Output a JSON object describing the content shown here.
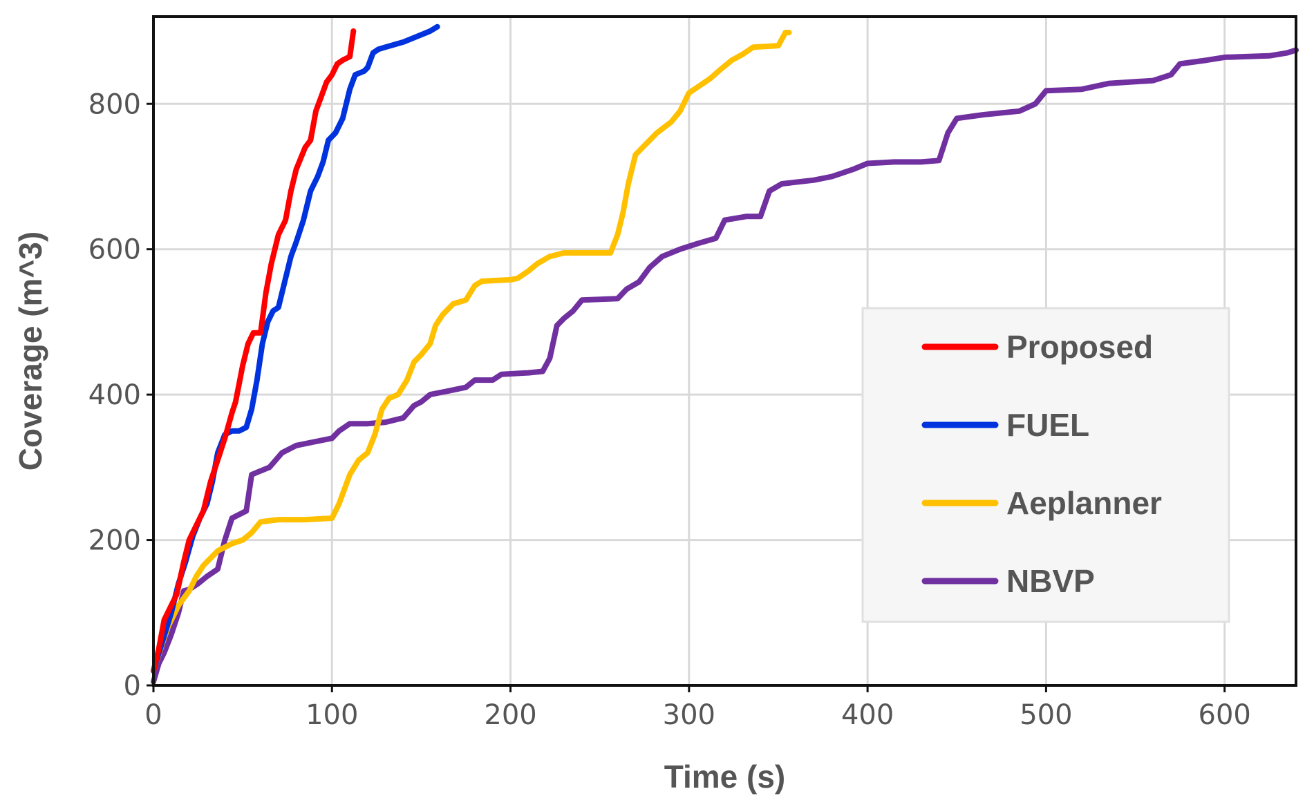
{
  "chart_data": {
    "type": "line",
    "title": "",
    "xlabel": "Time (s)",
    "ylabel": "Coverage (m^3)",
    "xlim": [
      0,
      640
    ],
    "ylim": [
      0,
      920
    ],
    "xticks": [
      0,
      100,
      200,
      300,
      400,
      500,
      600
    ],
    "yticks": [
      0,
      200,
      400,
      600,
      800
    ],
    "grid": true,
    "legend_position": "lower-right",
    "series": [
      {
        "name": "Proposed",
        "color": "#ff0000",
        "points": [
          [
            0,
            20
          ],
          [
            3,
            50
          ],
          [
            6,
            90
          ],
          [
            10,
            110
          ],
          [
            13,
            125
          ],
          [
            17,
            170
          ],
          [
            20,
            200
          ],
          [
            24,
            220
          ],
          [
            28,
            240
          ],
          [
            32,
            280
          ],
          [
            36,
            310
          ],
          [
            40,
            340
          ],
          [
            44,
            375
          ],
          [
            46,
            390
          ],
          [
            48,
            415
          ],
          [
            50,
            440
          ],
          [
            53,
            470
          ],
          [
            56,
            485
          ],
          [
            60,
            485
          ],
          [
            63,
            540
          ],
          [
            66,
            580
          ],
          [
            70,
            620
          ],
          [
            74,
            640
          ],
          [
            77,
            680
          ],
          [
            80,
            710
          ],
          [
            85,
            740
          ],
          [
            88,
            750
          ],
          [
            91,
            790
          ],
          [
            94,
            810
          ],
          [
            97,
            830
          ],
          [
            100,
            840
          ],
          [
            103,
            855
          ],
          [
            106,
            860
          ],
          [
            110,
            865
          ],
          [
            112,
            900
          ]
        ]
      },
      {
        "name": "FUEL",
        "color": "#0033dd",
        "points": [
          [
            0,
            20
          ],
          [
            5,
            60
          ],
          [
            10,
            100
          ],
          [
            14,
            140
          ],
          [
            18,
            170
          ],
          [
            22,
            205
          ],
          [
            26,
            230
          ],
          [
            30,
            250
          ],
          [
            33,
            280
          ],
          [
            36,
            320
          ],
          [
            40,
            345
          ],
          [
            44,
            350
          ],
          [
            48,
            350
          ],
          [
            52,
            355
          ],
          [
            55,
            380
          ],
          [
            58,
            420
          ],
          [
            61,
            470
          ],
          [
            64,
            500
          ],
          [
            67,
            515
          ],
          [
            70,
            520
          ],
          [
            74,
            560
          ],
          [
            77,
            590
          ],
          [
            80,
            610
          ],
          [
            84,
            640
          ],
          [
            88,
            680
          ],
          [
            92,
            700
          ],
          [
            95,
            720
          ],
          [
            98,
            750
          ],
          [
            102,
            760
          ],
          [
            106,
            780
          ],
          [
            110,
            820
          ],
          [
            113,
            840
          ],
          [
            118,
            845
          ],
          [
            120,
            850
          ],
          [
            123,
            870
          ],
          [
            126,
            875
          ],
          [
            130,
            878
          ],
          [
            140,
            885
          ],
          [
            150,
            895
          ],
          [
            155,
            900
          ],
          [
            159,
            906
          ]
        ]
      },
      {
        "name": "Aeplanner",
        "color": "#ffc000",
        "points": [
          [
            0,
            20
          ],
          [
            8,
            80
          ],
          [
            14,
            110
          ],
          [
            20,
            130
          ],
          [
            24,
            150
          ],
          [
            28,
            165
          ],
          [
            32,
            175
          ],
          [
            36,
            185
          ],
          [
            40,
            190
          ],
          [
            44,
            195
          ],
          [
            50,
            200
          ],
          [
            55,
            210
          ],
          [
            60,
            225
          ],
          [
            70,
            228
          ],
          [
            85,
            228
          ],
          [
            100,
            230
          ],
          [
            104,
            250
          ],
          [
            110,
            290
          ],
          [
            115,
            310
          ],
          [
            120,
            320
          ],
          [
            124,
            345
          ],
          [
            128,
            380
          ],
          [
            132,
            395
          ],
          [
            137,
            400
          ],
          [
            142,
            420
          ],
          [
            146,
            445
          ],
          [
            150,
            455
          ],
          [
            155,
            470
          ],
          [
            158,
            495
          ],
          [
            162,
            510
          ],
          [
            168,
            525
          ],
          [
            175,
            530
          ],
          [
            180,
            550
          ],
          [
            184,
            556
          ],
          [
            200,
            558
          ],
          [
            204,
            560
          ],
          [
            210,
            570
          ],
          [
            215,
            580
          ],
          [
            222,
            590
          ],
          [
            230,
            595
          ],
          [
            250,
            595
          ],
          [
            256,
            595
          ],
          [
            260,
            620
          ],
          [
            263,
            650
          ],
          [
            266,
            690
          ],
          [
            270,
            730
          ],
          [
            276,
            745
          ],
          [
            282,
            760
          ],
          [
            290,
            775
          ],
          [
            295,
            790
          ],
          [
            300,
            815
          ],
          [
            306,
            825
          ],
          [
            312,
            835
          ],
          [
            318,
            848
          ],
          [
            324,
            860
          ],
          [
            330,
            868
          ],
          [
            336,
            878
          ],
          [
            350,
            880
          ],
          [
            354,
            898
          ],
          [
            356,
            898
          ]
        ]
      },
      {
        "name": "NBVP",
        "color": "#7030a0",
        "points": [
          [
            0,
            5
          ],
          [
            3,
            30
          ],
          [
            6,
            45
          ],
          [
            10,
            70
          ],
          [
            14,
            100
          ],
          [
            17,
            130
          ],
          [
            20,
            132
          ],
          [
            25,
            140
          ],
          [
            30,
            150
          ],
          [
            36,
            160
          ],
          [
            40,
            200
          ],
          [
            44,
            230
          ],
          [
            48,
            235
          ],
          [
            52,
            240
          ],
          [
            55,
            290
          ],
          [
            60,
            295
          ],
          [
            65,
            300
          ],
          [
            72,
            320
          ],
          [
            80,
            330
          ],
          [
            90,
            335
          ],
          [
            100,
            340
          ],
          [
            104,
            350
          ],
          [
            110,
            360
          ],
          [
            120,
            360
          ],
          [
            130,
            362
          ],
          [
            140,
            368
          ],
          [
            146,
            385
          ],
          [
            150,
            390
          ],
          [
            155,
            400
          ],
          [
            165,
            405
          ],
          [
            175,
            410
          ],
          [
            180,
            420
          ],
          [
            190,
            420
          ],
          [
            195,
            428
          ],
          [
            210,
            430
          ],
          [
            218,
            432
          ],
          [
            222,
            450
          ],
          [
            226,
            495
          ],
          [
            230,
            505
          ],
          [
            235,
            515
          ],
          [
            240,
            530
          ],
          [
            260,
            532
          ],
          [
            265,
            545
          ],
          [
            272,
            555
          ],
          [
            278,
            575
          ],
          [
            285,
            590
          ],
          [
            295,
            600
          ],
          [
            305,
            608
          ],
          [
            315,
            615
          ],
          [
            320,
            640
          ],
          [
            332,
            645
          ],
          [
            340,
            645
          ],
          [
            345,
            680
          ],
          [
            352,
            690
          ],
          [
            370,
            695
          ],
          [
            380,
            700
          ],
          [
            392,
            710
          ],
          [
            400,
            718
          ],
          [
            415,
            720
          ],
          [
            430,
            720
          ],
          [
            440,
            722
          ],
          [
            445,
            760
          ],
          [
            450,
            780
          ],
          [
            465,
            785
          ],
          [
            485,
            790
          ],
          [
            494,
            800
          ],
          [
            500,
            818
          ],
          [
            520,
            820
          ],
          [
            535,
            828
          ],
          [
            560,
            832
          ],
          [
            570,
            840
          ],
          [
            575,
            855
          ],
          [
            590,
            860
          ],
          [
            600,
            864
          ],
          [
            625,
            866
          ],
          [
            635,
            870
          ],
          [
            640,
            874
          ]
        ]
      }
    ]
  }
}
